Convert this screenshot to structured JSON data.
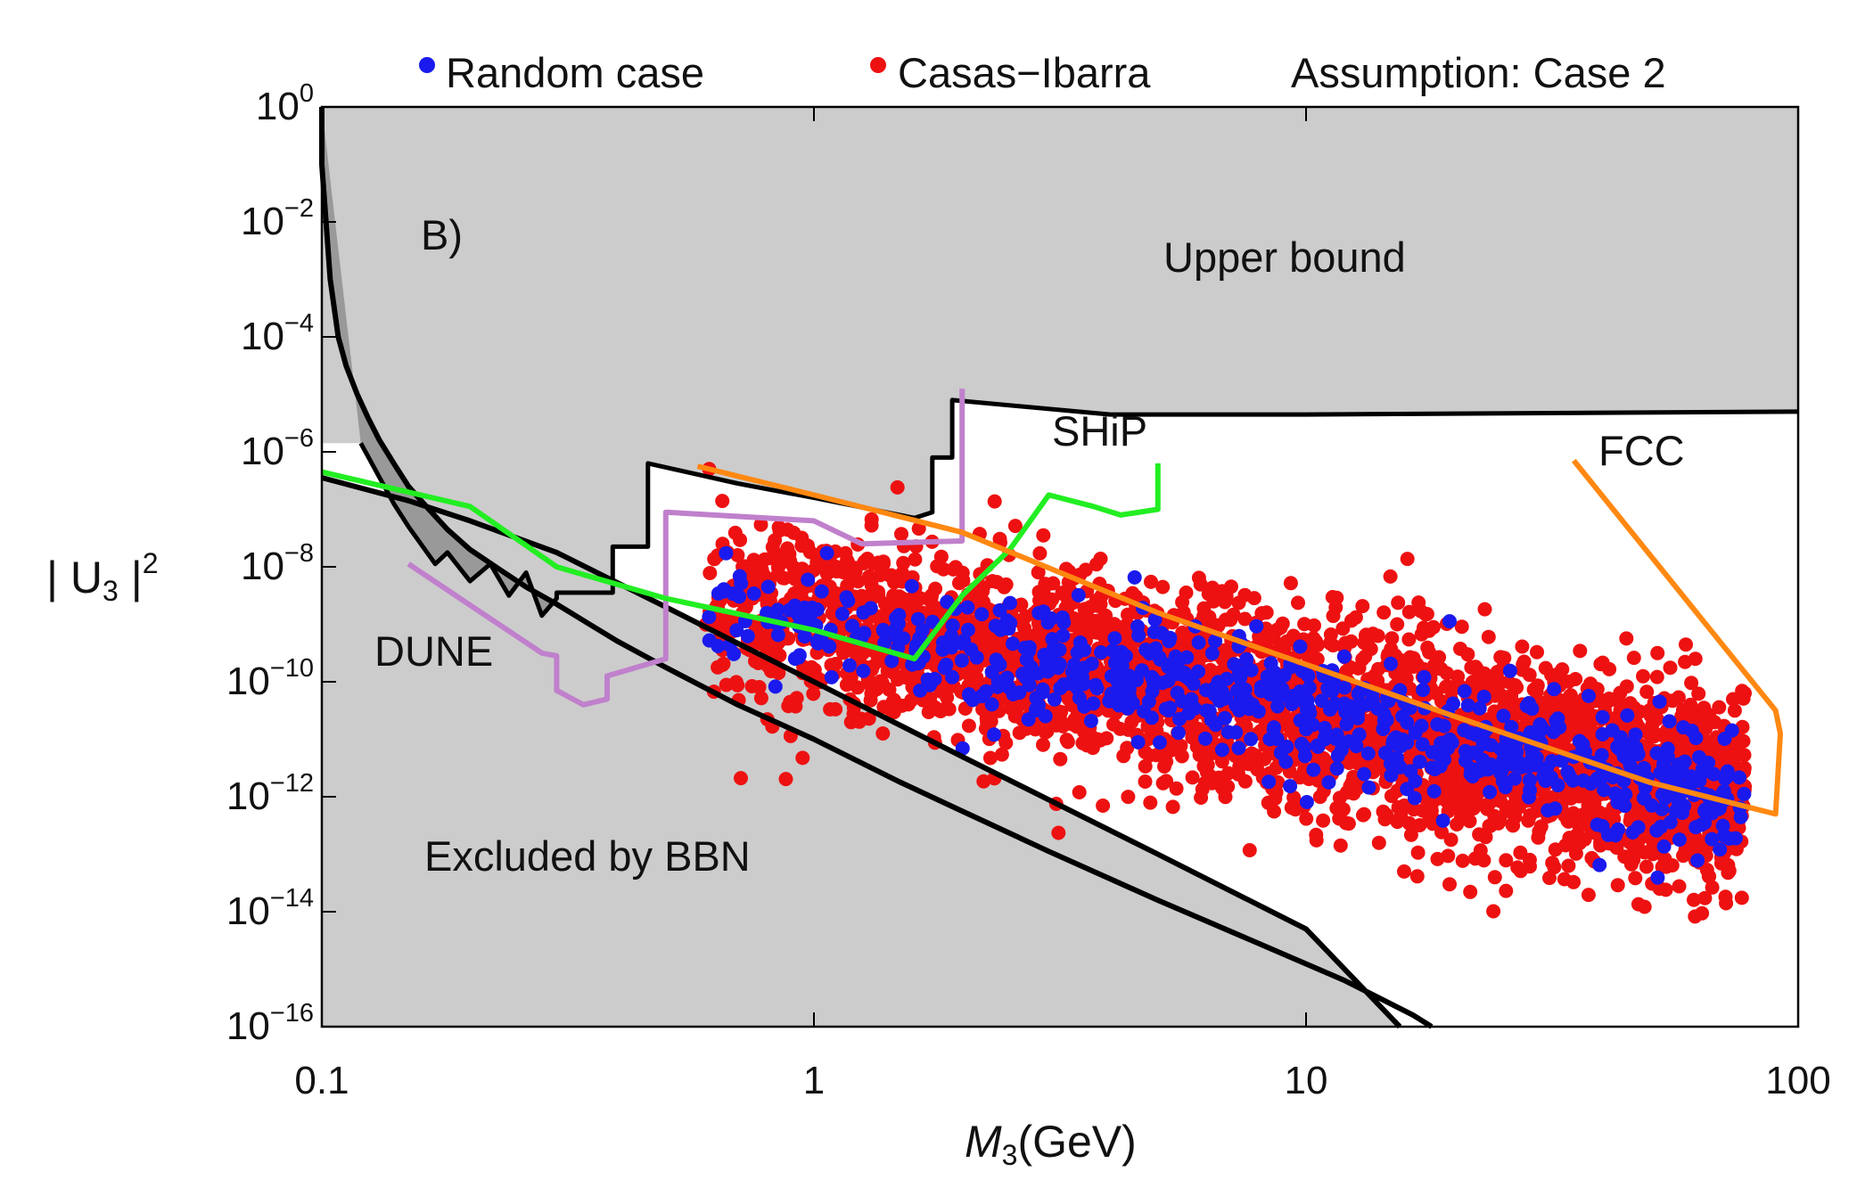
{
  "chart_data": {
    "type": "scatter",
    "panel_label": "B)",
    "xlabel": "M3(GeV)",
    "xlabel_main": "M",
    "xlabel_sub": "3",
    "xlabel_unit": "(GeV)",
    "ylabel": "|U3|^2",
    "ylabel_parts": [
      "| U",
      "3",
      " |",
      "2"
    ],
    "x_scale": "log",
    "y_scale": "log",
    "xlim": [
      0.1,
      100
    ],
    "ylim_exponent": [
      -16,
      0
    ],
    "x_ticks": [
      {
        "value": 0.1,
        "label": "0.1"
      },
      {
        "value": 1,
        "label": "1"
      },
      {
        "value": 10,
        "label": "10"
      },
      {
        "value": 100,
        "label": "100"
      }
    ],
    "y_ticks": [
      {
        "exponent": 0,
        "base": "10",
        "power": "0"
      },
      {
        "exponent": -2,
        "base": "10",
        "power": "−2"
      },
      {
        "exponent": -4,
        "base": "10",
        "power": "−4"
      },
      {
        "exponent": -6,
        "base": "10",
        "power": "−6"
      },
      {
        "exponent": -8,
        "base": "10",
        "power": "−8"
      },
      {
        "exponent": -10,
        "base": "10",
        "power": "−10"
      },
      {
        "exponent": -12,
        "base": "10",
        "power": "−12"
      },
      {
        "exponent": -14,
        "base": "10",
        "power": "−14"
      },
      {
        "exponent": -16,
        "base": "10",
        "power": "−16"
      }
    ],
    "legend": {
      "placement": "top",
      "entries": [
        {
          "name": "Random case",
          "color": "#1a1aee"
        },
        {
          "name": "Casas−Ibarra",
          "color": "#ee1111"
        }
      ],
      "note": "Assumption: Case 2"
    },
    "annotations": {
      "upper_bound": "Upper bound",
      "bbn": "Excluded by BBN",
      "ship": "SHiP",
      "fcc": "FCC",
      "dune": "DUNE"
    },
    "regions": {
      "excluded_fill": "#cccccc",
      "dark_fill": "#888888",
      "upper_bound_boundary": [
        [
          0.1,
          0
        ],
        [
          0.1,
          -1.0
        ],
        [
          0.104,
          -3.0
        ],
        [
          0.108,
          -4.0
        ],
        [
          0.112,
          -4.5
        ],
        [
          0.118,
          -5.0
        ],
        [
          0.124,
          -5.4
        ],
        [
          0.131,
          -5.8
        ],
        [
          0.14,
          -6.2
        ],
        [
          0.15,
          -6.6
        ],
        [
          0.165,
          -7.0
        ],
        [
          0.18,
          -7.35
        ],
        [
          0.2,
          -7.7
        ],
        [
          0.23,
          -8.05
        ],
        [
          0.26,
          -8.35
        ],
        [
          0.3,
          -8.65
        ],
        [
          0.35,
          -9.0
        ],
        [
          0.4,
          -9.3
        ],
        [
          0.5,
          -9.75
        ],
        [
          0.7,
          -10.4
        ],
        [
          1,
          -11.0
        ],
        [
          1.5,
          -11.75
        ],
        [
          2,
          -12.25
        ],
        [
          3,
          -12.95
        ],
        [
          5,
          -13.8
        ],
        [
          8,
          -14.55
        ],
        [
          12,
          -15.2
        ],
        [
          16.5,
          -15.8
        ],
        [
          18,
          -16.0
        ]
      ],
      "bbn_boundary": [
        [
          0.1,
          -6.45
        ],
        [
          0.15,
          -6.85
        ],
        [
          0.2,
          -7.2
        ],
        [
          0.3,
          -7.75
        ],
        [
          0.5,
          -8.7
        ],
        [
          1,
          -10.0
        ],
        [
          2,
          -11.3
        ],
        [
          5,
          -13.0
        ],
        [
          10,
          -14.3
        ],
        [
          15.5,
          -16.0
        ]
      ],
      "upper_ceiling": [
        [
          0.12,
          -5.85
        ],
        [
          0.14,
          -6.9
        ],
        [
          0.15,
          -7.3
        ],
        [
          0.17,
          -7.95
        ],
        [
          0.18,
          -7.75
        ],
        [
          0.2,
          -8.25
        ],
        [
          0.22,
          -7.95
        ],
        [
          0.24,
          -8.5
        ],
        [
          0.26,
          -8.1
        ],
        [
          0.28,
          -8.85
        ],
        [
          0.3,
          -8.55
        ],
        [
          0.3,
          -8.45
        ],
        [
          0.39,
          -8.45
        ],
        [
          0.39,
          -7.65
        ],
        [
          0.46,
          -7.65
        ],
        [
          0.46,
          -6.2
        ],
        [
          0.7,
          -6.55
        ],
        [
          1.0,
          -6.8
        ],
        [
          1.6,
          -7.15
        ],
        [
          1.74,
          -7.05
        ],
        [
          1.74,
          -6.1
        ],
        [
          1.91,
          -6.1
        ],
        [
          1.91,
          -5.1
        ],
        [
          4,
          -5.35
        ],
        [
          10,
          -5.35
        ],
        [
          100,
          -5.3
        ]
      ]
    },
    "curves": [
      {
        "name": "DUNE",
        "color": "#c080cc",
        "points": [
          [
            0.15,
            -7.95
          ],
          [
            0.28,
            -9.5
          ],
          [
            0.3,
            -9.55
          ],
          [
            0.3,
            -10.15
          ],
          [
            0.34,
            -10.4
          ],
          [
            0.38,
            -10.3
          ],
          [
            0.38,
            -9.9
          ],
          [
            0.5,
            -9.6
          ],
          [
            0.5,
            -7.05
          ],
          [
            1.0,
            -7.2
          ],
          [
            1.25,
            -7.6
          ],
          [
            2.0,
            -7.55
          ],
          [
            2.0,
            -4.9
          ]
        ]
      },
      {
        "name": "SHiP",
        "color": "#22ee22",
        "points": [
          [
            0.1,
            -6.35
          ],
          [
            0.2,
            -6.95
          ],
          [
            0.3,
            -8.0
          ],
          [
            0.5,
            -8.55
          ],
          [
            1.0,
            -9.1
          ],
          [
            1.6,
            -9.6
          ],
          [
            2.0,
            -8.5
          ],
          [
            2.5,
            -7.7
          ],
          [
            3.0,
            -6.75
          ],
          [
            3.7,
            -6.95
          ],
          [
            4.2,
            -7.1
          ],
          [
            5.0,
            -7.0
          ],
          [
            5.0,
            -6.2
          ]
        ]
      },
      {
        "name": "FCC",
        "color": "#ff8811",
        "points": [
          [
            0.58,
            -6.25
          ],
          [
            1.0,
            -6.75
          ],
          [
            2.0,
            -7.4
          ],
          [
            5.0,
            -8.8
          ],
          [
            10,
            -9.7
          ],
          [
            20,
            -10.6
          ],
          [
            50,
            -11.75
          ],
          [
            90,
            -12.3
          ],
          [
            92,
            -10.9
          ],
          [
            90,
            -10.5
          ],
          [
            35,
            -6.15
          ]
        ]
      }
    ],
    "series": [
      {
        "name": "Random case",
        "color": "#1a1aee",
        "count": 700
      },
      {
        "name": "Casas−Ibarra",
        "color": "#ee1111",
        "count": 3200
      }
    ]
  }
}
